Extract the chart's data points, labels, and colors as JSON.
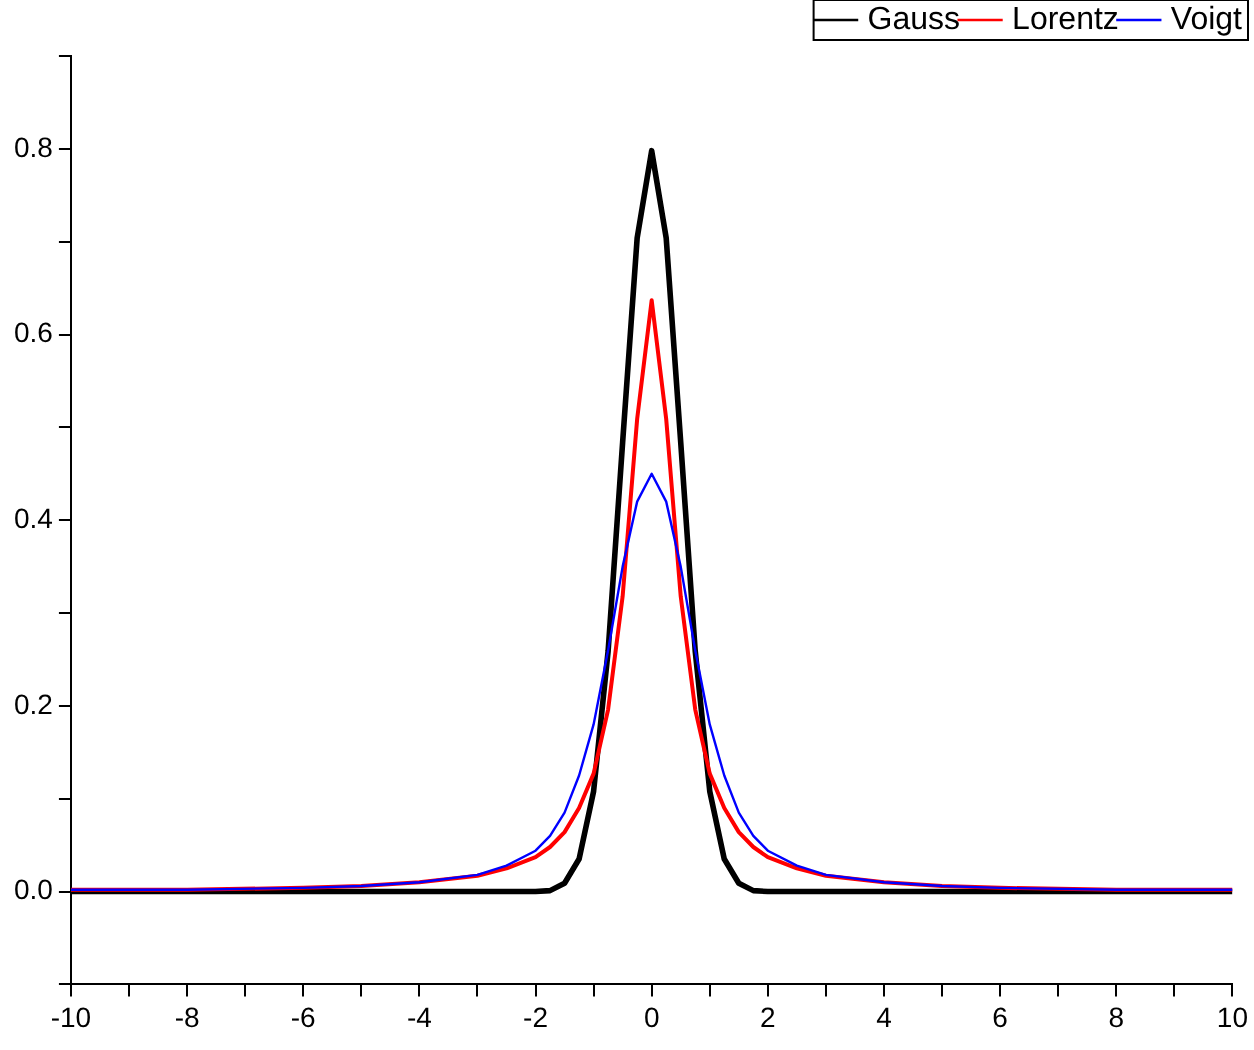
{
  "chart_data": {
    "type": "line",
    "x": [
      -10,
      -8,
      -6,
      -5,
      -4,
      -3,
      -2.5,
      -2,
      -1.75,
      -1.5,
      -1.25,
      -1,
      -0.75,
      -0.5,
      -0.25,
      0,
      0.25,
      0.5,
      0.75,
      1,
      1.25,
      1.5,
      1.75,
      2,
      2.5,
      3,
      4,
      5,
      6,
      8,
      10
    ],
    "series": [
      {
        "name": "Gauss",
        "color": "#000000",
        "values": [
          0,
          0,
          0,
          0,
          0,
          0,
          0,
          0,
          0.001,
          0.009,
          0.035,
          0.108,
          0.259,
          0.484,
          0.704,
          0.798,
          0.704,
          0.484,
          0.259,
          0.108,
          0.035,
          0.009,
          0.001,
          0,
          0,
          0,
          0,
          0,
          0,
          0,
          0
        ]
      },
      {
        "name": "Lorentz",
        "color": "#ff0000",
        "values": [
          0.002,
          0.002,
          0.004,
          0.006,
          0.01,
          0.017,
          0.025,
          0.037,
          0.048,
          0.064,
          0.09,
          0.127,
          0.196,
          0.318,
          0.509,
          0.637,
          0.509,
          0.318,
          0.196,
          0.127,
          0.09,
          0.064,
          0.048,
          0.037,
          0.025,
          0.017,
          0.01,
          0.006,
          0.004,
          0.002,
          0.002
        ]
      },
      {
        "name": "Voigt",
        "color": "#0000ff",
        "values": [
          0.002,
          0.002,
          0.004,
          0.006,
          0.01,
          0.018,
          0.028,
          0.044,
          0.06,
          0.085,
          0.125,
          0.18,
          0.26,
          0.35,
          0.42,
          0.45,
          0.42,
          0.35,
          0.26,
          0.18,
          0.125,
          0.085,
          0.06,
          0.044,
          0.028,
          0.018,
          0.01,
          0.006,
          0.004,
          0.002,
          0.002
        ]
      }
    ],
    "xlim": [
      -10,
      10
    ],
    "xticks": [
      -10,
      {
        "value": -9,
        "label": null
      },
      -8,
      {
        "value": -7,
        "label": null
      },
      -6,
      {
        "value": -5,
        "label": null
      },
      -4,
      {
        "value": -3,
        "label": null
      },
      -2,
      {
        "value": -1,
        "label": null
      },
      0,
      {
        "value": 1,
        "label": null
      },
      2,
      {
        "value": 3,
        "label": null
      },
      4,
      {
        "value": 5,
        "label": null
      },
      6,
      {
        "value": 7,
        "label": null
      },
      8,
      {
        "value": 9,
        "label": null
      },
      10
    ],
    "ylim": [
      -0.1,
      0.9
    ],
    "yticks": [
      {
        "value": -0.1,
        "label": null
      },
      {
        "value": 0,
        "label": "0.0"
      },
      {
        "value": 0.1,
        "label": null
      },
      {
        "value": 0.2,
        "label": "0.2"
      },
      {
        "value": 0.3,
        "label": null
      },
      {
        "value": 0.4,
        "label": "0.4"
      },
      {
        "value": 0.5,
        "label": null
      },
      {
        "value": 0.6,
        "label": "0.6"
      },
      {
        "value": 0.7,
        "label": null
      },
      {
        "value": 0.8,
        "label": "0.8"
      },
      {
        "value": 0.9,
        "label": null
      }
    ],
    "grid": false,
    "legend": "top right",
    "marker": "none",
    "line_style": "solid"
  }
}
